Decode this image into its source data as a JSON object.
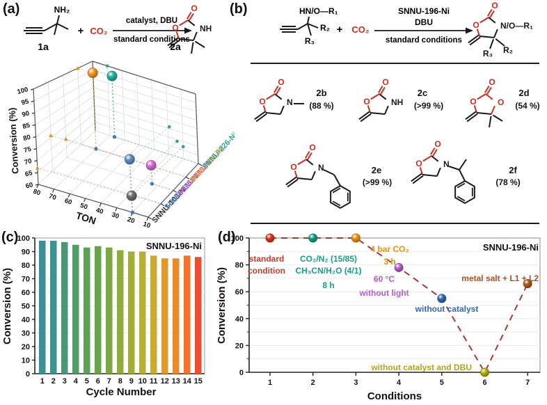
{
  "figure": {
    "panels": {
      "a": {
        "label": "(a)",
        "scheme": {
          "amine_label": "NH₂",
          "plus": "+",
          "co2": "CO₂",
          "arrow_top": "catalyst, DBU",
          "arrow_bottom": "standard conditions",
          "reactant_id": "1a",
          "product_id": "2a",
          "product_n_label": "NH"
        }
      },
      "b": {
        "label": "(b)",
        "scheme": {
          "amine_label": "HN/O—R₁",
          "r2": "R₂",
          "r3": "R₃",
          "plus": "+",
          "co2": "CO₂",
          "arrow_top1": "SNNU-196-Ni",
          "arrow_top2": "DBU",
          "arrow_bottom": "standard conditions",
          "product_n_label": "N/O—R₁",
          "product_r3": "R₃",
          "product_r2": "R₂"
        },
        "atoms": {
          "o": "O"
        },
        "compounds": [
          {
            "id": "2b",
            "yield": "(88 %)",
            "type": "NMe",
            "n_label": "N"
          },
          {
            "id": "2c",
            "yield": "(>99 %)",
            "type": "NH",
            "n_label": "NH"
          },
          {
            "id": "2d",
            "yield": "(54 %)",
            "type": "OC",
            "n_label": "O"
          },
          {
            "id": "2e",
            "yield": "(>99 %)",
            "type": "NBn",
            "n_label": "N"
          },
          {
            "id": "2f",
            "yield": "(78 %)",
            "type": "NCHMePh",
            "n_label": "N"
          }
        ]
      },
      "c": {
        "label": "(c)",
        "annotation": "SNNU-196-Ni"
      },
      "d": {
        "label": "(d)",
        "annotation": "SNNU-196-Ni"
      }
    }
  },
  "chart_data": [
    {
      "panel": "a",
      "type": "scatter3d",
      "xlabel": "TON",
      "xticks": [
        80,
        70,
        60,
        50,
        40,
        30,
        20,
        10
      ],
      "xlim": [
        80,
        10
      ],
      "zlabel": "Conversion (%)",
      "zlim": [
        60,
        100
      ],
      "ztick_step": 5,
      "categories_front_to_back": [
        "SNNU-103-Ni",
        "SNNU-126-Ni",
        "SNNU-183-Ni",
        "SNNU-196-Ni",
        "SNNU-226-Ni"
      ],
      "category_label_colors": [
        "#2b2b2b",
        "#4a7fc1",
        "#c75bc3",
        "#ed8a20",
        "#2aa898"
      ],
      "series": [
        {
          "name": "SNNU-103-Ni",
          "color": "#707070",
          "ton": 20,
          "conversion": 67
        },
        {
          "name": "SNNU-126-Ni",
          "color": "#5f93c9",
          "ton": 29,
          "conversion": 76
        },
        {
          "name": "SNNU-183-Ni",
          "color": "#d96fd4",
          "ton": 24,
          "conversion": 69
        },
        {
          "name": "SNNU-196-Ni",
          "color": "#f59a23",
          "ton": 70,
          "conversion": 100
        },
        {
          "name": "SNNU-226-Ni",
          "color": "#27b5a1",
          "ton": 67,
          "conversion": 95
        }
      ],
      "projection_dot_colors": {
        "left_wall": "#c9a227",
        "back_wall": "#3f9f8f",
        "floor": "#4878b0"
      },
      "grid": true
    },
    {
      "panel": "c",
      "type": "bar",
      "title": "SNNU-196-Ni",
      "xlabel": "Cycle Number",
      "ylabel": "Conversion (%)",
      "ylim": [
        0,
        100
      ],
      "ytick_step": 10,
      "categories": [
        1,
        2,
        3,
        4,
        5,
        6,
        7,
        8,
        9,
        10,
        11,
        12,
        13,
        14,
        15
      ],
      "values": [
        98,
        98,
        97,
        95,
        93,
        94,
        93,
        91,
        90,
        90,
        87,
        85,
        85,
        87,
        86
      ],
      "colors": [
        "#3d8e95",
        "#3e9290",
        "#4b9879",
        "#539b68",
        "#5fa058",
        "#6ba34c",
        "#7ca745",
        "#92ab3e",
        "#a3ae3a",
        "#b6b039",
        "#c9ab33",
        "#de982b",
        "#ea8c27",
        "#f1722b",
        "#e94f33"
      ],
      "grid": true
    },
    {
      "panel": "d",
      "type": "scatter",
      "corner_label": "SNNU-196-Ni",
      "xlabel": "Conditions",
      "ylabel": "Conversion (%)",
      "ylim": [
        0,
        100
      ],
      "yticks": [
        0,
        20,
        40,
        60,
        80,
        100
      ],
      "x": [
        1,
        2,
        3,
        4,
        5,
        6,
        7
      ],
      "y": [
        100,
        100,
        100,
        78,
        55,
        0,
        66
      ],
      "point_colors": [
        "#d93a20",
        "#12a184",
        "#f2930d",
        "#bb64c8",
        "#2f6cb5",
        "#b3b414",
        "#b35b17"
      ],
      "line_color": "#a93a2e",
      "line_style": "dashed",
      "annotations": [
        {
          "x": 1,
          "color": "#cd3a2a",
          "lines": [
            "standard",
            "condition"
          ]
        },
        {
          "x": 2,
          "color": "#16a085",
          "lines": [
            "CO₂/N₂ (15/85)",
            "CH₃CN/H₂O (4/1)",
            "8 h"
          ]
        },
        {
          "x": 3,
          "color": "#e8920f",
          "lines": [
            "4 bar CO₂",
            "3 h"
          ]
        },
        {
          "x": 4,
          "color": "#b05cc4",
          "lines": [
            "60 °C",
            "without light"
          ]
        },
        {
          "x": 5,
          "color": "#2f6cb5",
          "lines": [
            "without catalyst"
          ]
        },
        {
          "x": 6,
          "color": "#a8aa12",
          "lines": [
            "without catalyst and DBU"
          ]
        },
        {
          "x": 7,
          "color": "#a4562a",
          "lines": [
            "metal salt + L1 + L2"
          ]
        }
      ],
      "grid": true
    }
  ]
}
